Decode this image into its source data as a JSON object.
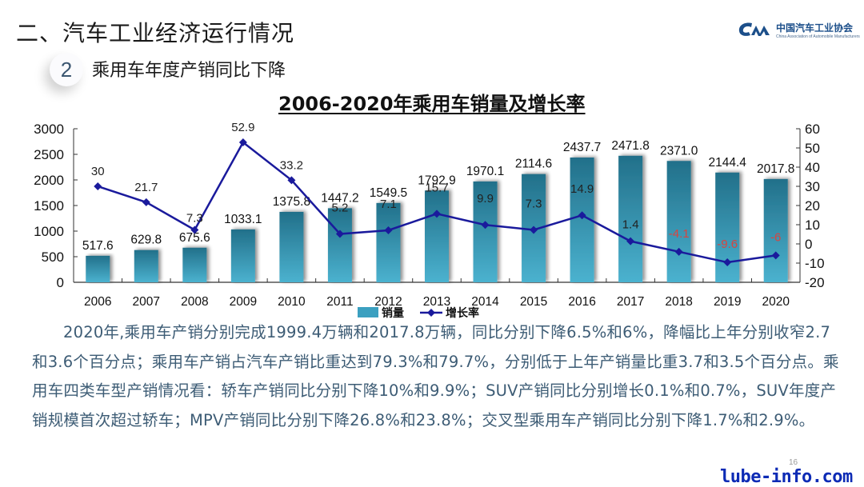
{
  "header": {
    "section_title": "二、汽车工业经济运行情况",
    "badge_number": "2",
    "subtitle": "乘用车年度产销同比下降"
  },
  "logo": {
    "mark": "CM",
    "name_cn": "中国汽车工业协会",
    "name_en": "China Association of Automobile Manufacturers",
    "color": "#1c4f8a"
  },
  "chart_data": {
    "type": "bar+line",
    "title": "2006-2020年乘用车销量及增长率",
    "categories": [
      "2006",
      "2007",
      "2008",
      "2009",
      "2010",
      "2011",
      "2012",
      "2013",
      "2014",
      "2015",
      "2016",
      "2017",
      "2018",
      "2019",
      "2020"
    ],
    "series": [
      {
        "name": "销量",
        "type": "bar",
        "axis": "left",
        "color": "#2f8fae",
        "values": [
          517.6,
          629.8,
          675.6,
          1033.1,
          1375.8,
          1447.2,
          1549.5,
          1792.9,
          1970.1,
          2114.6,
          2437.7,
          2471.8,
          2371.0,
          2144.4,
          2017.8
        ],
        "labels": [
          "517.6",
          "629.8",
          "675.6",
          "1033.1",
          "1375.8",
          "1447.2",
          "1549.5",
          "1792.9",
          "1970.1",
          "2114.6",
          "2437.7",
          "2471.8",
          "2371.0",
          "2144.4",
          "2017.8"
        ]
      },
      {
        "name": "增长率",
        "type": "line",
        "axis": "right",
        "color": "#1a1a9c",
        "negative_label_color": "#d9443f",
        "values": [
          30,
          21.7,
          7.3,
          52.9,
          33.2,
          5.2,
          7.1,
          15.7,
          9.9,
          7.3,
          14.9,
          1.4,
          -4.1,
          -9.6,
          -6
        ],
        "labels": [
          "30",
          "21.7",
          "7.3",
          "52.9",
          "33.2",
          "5.2",
          "7.1",
          "15.7",
          "9.9",
          "7.3",
          "14.9",
          "1.4",
          "-4.1",
          "-9.6",
          "-6"
        ]
      }
    ],
    "y_left": {
      "min": 0,
      "max": 3000,
      "ticks": [
        0,
        500,
        1000,
        1500,
        2000,
        2500,
        3000
      ]
    },
    "y_right": {
      "min": -20,
      "max": 60,
      "ticks": [
        -20,
        -10,
        0,
        10,
        20,
        30,
        40,
        50,
        60
      ]
    },
    "xlabel": "",
    "ylabel_left": "",
    "ylabel_right": "",
    "grid": false,
    "legend": {
      "position": "bottom",
      "entries": [
        "销量",
        "增长率"
      ]
    }
  },
  "body": {
    "paragraph": "2020年,乘用车产销分别完成1999.4万辆和2017.8万辆，同比分别下降6.5%和6%，降幅比上年分别收窄2.7和3.6个百分点；乘用车产销占汽车产销比重达到79.3%和79.7%，分别低于上年产销量比重3.7和3.5个百分点。乘用车四类车型产销情况看：轿车产销同比分别下降10%和9.9%；SUV产销同比分别增长0.1%和0.7%，SUV年度产销规模首次超过轿车；MPV产销同比分别下降26.8%和23.8%；交叉型乘用车产销同比分别下降1.7%和2.9%。"
  },
  "footer": {
    "page_number": "16",
    "watermark": "lube-info.com"
  }
}
